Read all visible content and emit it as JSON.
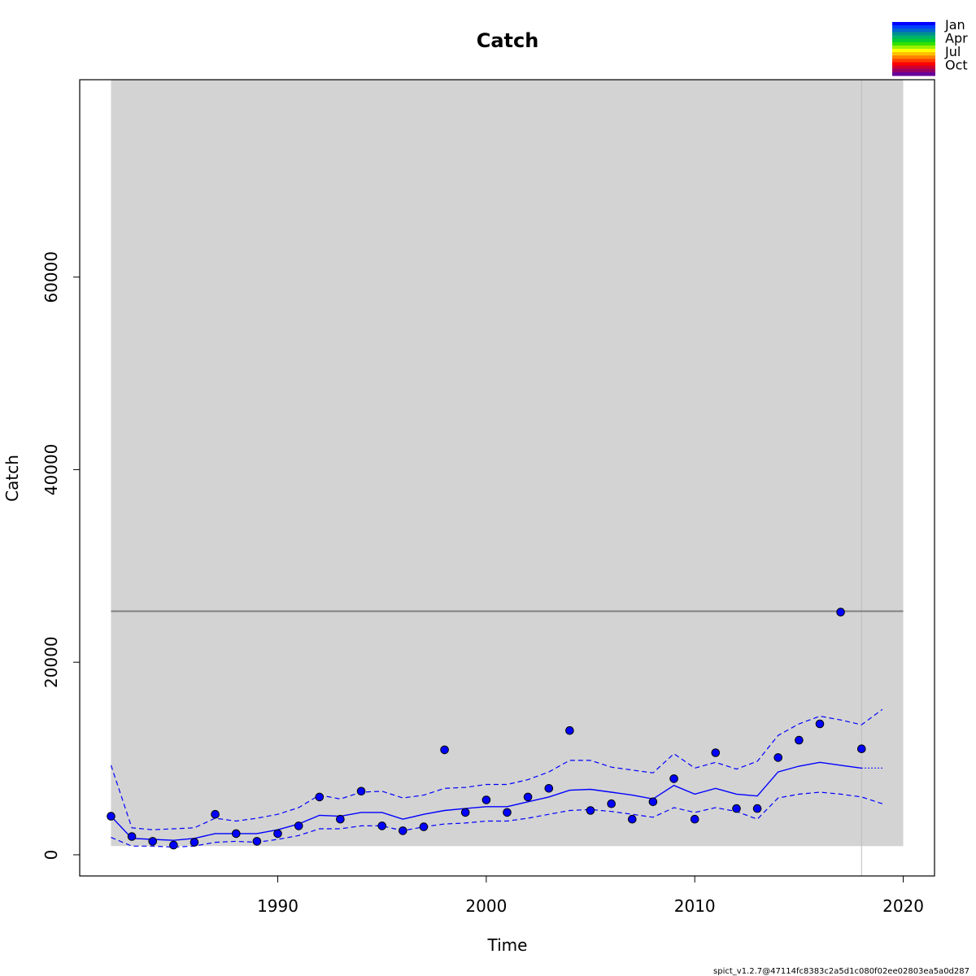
{
  "chart_data": {
    "type": "line",
    "title": "Catch",
    "xlabel": "Time",
    "ylabel": "Catch",
    "xlim": [
      1980.5,
      2021.5
    ],
    "ylim": [
      -2200,
      80500
    ],
    "x_ticks": [
      1990,
      2000,
      2010,
      2020
    ],
    "y_ticks": [
      0,
      20000,
      40000,
      60000
    ],
    "x_tick_labels": [
      "1990",
      "2000",
      "2010",
      "2020"
    ],
    "y_tick_labels": [
      "0",
      "20000",
      "40000",
      "60000"
    ],
    "shaded_region": {
      "x": [
        1982,
        2020
      ],
      "y": [
        900,
        80500
      ],
      "color": "#d3d3d3"
    },
    "reference_line": {
      "value": 25300,
      "x": [
        1982,
        2020
      ],
      "color": "#808080"
    },
    "vertical_line": {
      "x": 2018,
      "color": "#bebebe"
    },
    "observed": {
      "x": [
        1982,
        1983,
        1984,
        1985,
        1986,
        1987,
        1988,
        1989,
        1990,
        1991,
        1992,
        1993,
        1994,
        1995,
        1996,
        1997,
        1998,
        1999,
        2000,
        2001,
        2002,
        2003,
        2004,
        2005,
        2006,
        2007,
        2008,
        2009,
        2010,
        2011,
        2012,
        2013,
        2014,
        2015,
        2016,
        2017,
        2018
      ],
      "y": [
        4000,
        1900,
        1400,
        1000,
        1300,
        4200,
        2200,
        1400,
        2200,
        3000,
        6000,
        3700,
        6600,
        3000,
        2500,
        2900,
        10900,
        4400,
        5700,
        4400,
        6000,
        6900,
        12900,
        4600,
        5300,
        3700,
        5500,
        7900,
        3700,
        10600,
        4800,
        4800,
        10100,
        11900,
        13600,
        25200,
        11000
      ],
      "color": "#0000ff",
      "border": "#000000"
    },
    "fit": {
      "x": [
        1982,
        1983,
        1984,
        1985,
        1986,
        1987,
        1988,
        1989,
        1990,
        1991,
        1992,
        1993,
        1994,
        1995,
        1996,
        1997,
        1998,
        1999,
        2000,
        2001,
        2002,
        2003,
        2004,
        2005,
        2006,
        2007,
        2008,
        2009,
        2010,
        2011,
        2012,
        2013,
        2014,
        2015,
        2016,
        2017,
        2018
      ],
      "y": [
        4000,
        1700,
        1600,
        1500,
        1700,
        2200,
        2200,
        2200,
        2600,
        3200,
        4100,
        4000,
        4400,
        4400,
        3700,
        4200,
        4600,
        4800,
        5000,
        5000,
        5500,
        6000,
        6700,
        6800,
        6500,
        6200,
        5800,
        7200,
        6300,
        6900,
        6300,
        6100,
        8600,
        9200,
        9600,
        9300,
        9000
      ],
      "color": "#0000ff"
    },
    "forecast": {
      "x": [
        2018,
        2019
      ],
      "y": [
        9000,
        9000
      ],
      "color": "#0000ff"
    },
    "ci_upper": {
      "x": [
        1982,
        1983,
        1984,
        1985,
        1986,
        1987,
        1988,
        1989,
        1990,
        1991,
        1992,
        1993,
        1994,
        1995,
        1996,
        1997,
        1998,
        1999,
        2000,
        2001,
        2002,
        2003,
        2004,
        2005,
        2006,
        2007,
        2008,
        2009,
        2010,
        2011,
        2012,
        2013,
        2014,
        2015,
        2016,
        2017,
        2018,
        2019
      ],
      "y": [
        9300,
        2800,
        2600,
        2700,
        2800,
        3800,
        3500,
        3800,
        4200,
        4900,
        6200,
        5800,
        6500,
        6600,
        5900,
        6200,
        6900,
        7000,
        7300,
        7300,
        7800,
        8600,
        9800,
        9800,
        9100,
        8800,
        8500,
        10500,
        9000,
        9600,
        8900,
        9700,
        12400,
        13600,
        14400,
        14000,
        13500,
        15100
      ],
      "color": "#0000ff"
    },
    "ci_lower": {
      "x": [
        1982,
        1983,
        1984,
        1985,
        1986,
        1987,
        1988,
        1989,
        1990,
        1991,
        1992,
        1993,
        1994,
        1995,
        1996,
        1997,
        1998,
        1999,
        2000,
        2001,
        2002,
        2003,
        2004,
        2005,
        2006,
        2007,
        2008,
        2009,
        2010,
        2011,
        2012,
        2013,
        2014,
        2015,
        2016,
        2017,
        2018,
        2019
      ],
      "y": [
        1800,
        900,
        900,
        800,
        900,
        1300,
        1400,
        1300,
        1600,
        2000,
        2700,
        2700,
        3000,
        3000,
        2500,
        2900,
        3200,
        3300,
        3500,
        3500,
        3800,
        4200,
        4600,
        4700,
        4500,
        4200,
        3900,
        4900,
        4400,
        4900,
        4500,
        3700,
        5900,
        6300,
        6500,
        6300,
        6000,
        5300
      ],
      "color": "#0000ff"
    },
    "legend": {
      "position": "top-right",
      "labels": [
        "Jan",
        "Apr",
        "Jul",
        "Oct"
      ],
      "colors": [
        "#0000ff",
        "#0040ff",
        "#0066cc",
        "#008f8f",
        "#00b36b",
        "#00cc33",
        "#33e000",
        "#99f000",
        "#ffff00",
        "#ffc000",
        "#ff8000",
        "#ff4000",
        "#ff0000",
        "#cc0033",
        "#990066",
        "#660099"
      ]
    }
  },
  "footer_text": "spict_v1.2.7@47114fc8383c2a5d1c080f02ee02803ea5a0d287"
}
